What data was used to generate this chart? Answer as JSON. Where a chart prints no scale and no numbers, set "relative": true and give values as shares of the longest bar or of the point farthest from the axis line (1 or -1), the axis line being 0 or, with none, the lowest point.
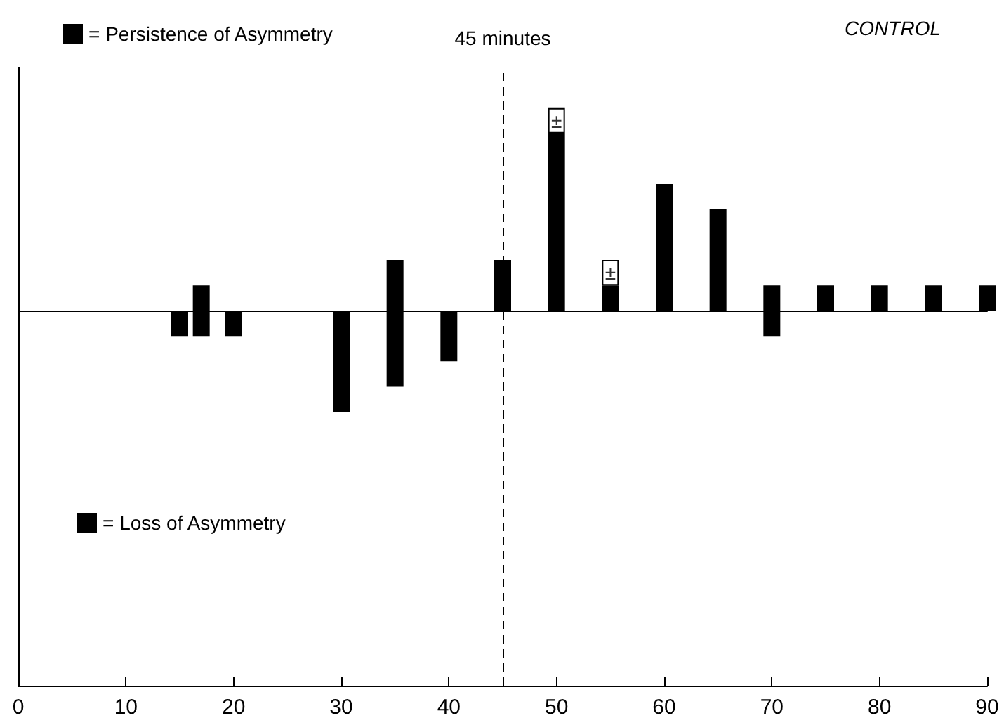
{
  "chart_data": {
    "type": "bar",
    "title": "CONTROL",
    "relative": true,
    "stacked": true,
    "xlim": [
      0,
      90
    ],
    "xticks": [
      0,
      10,
      20,
      30,
      40,
      50,
      60,
      70,
      80,
      90
    ],
    "legend": "left",
    "x": [
      15,
      17,
      20,
      30,
      35,
      40,
      45,
      50,
      55,
      60,
      65,
      70,
      75,
      80,
      85,
      90
    ],
    "series": [
      {
        "name": "= Persistence of Asymmetry",
        "color": "#000000",
        "values": [
          null,
          0.125,
          null,
          null,
          0.25,
          null,
          0.25,
          0.875,
          0.125,
          0.625,
          0.5,
          0.125,
          0.125,
          0.125,
          0.125,
          0.125
        ]
      },
      {
        "color": "#ffffff",
        "values": [
          null,
          null,
          null,
          null,
          null,
          null,
          null,
          0.125,
          0.125,
          null,
          null,
          null,
          null,
          null,
          null,
          null
        ]
      },
      {
        "name": "= Loss of Asymmetry",
        "color": "#000000",
        "values": [
          -0.125,
          -0.125,
          -0.125,
          -0.5,
          -0.375,
          -0.25,
          null,
          null,
          null,
          null,
          null,
          -0.125,
          null,
          null,
          null,
          null
        ]
      }
    ],
    "annotations": [
      {
        "text": "±",
        "x": 50,
        "y": 1
      },
      {
        "text": "±",
        "x": 55,
        "y": 0.25
      }
    ],
    "ref_lines": [
      {
        "axis": "x",
        "value": 45,
        "label": "45 minutes",
        "line_style": "dashed",
        "color": "#000000"
      }
    ]
  }
}
